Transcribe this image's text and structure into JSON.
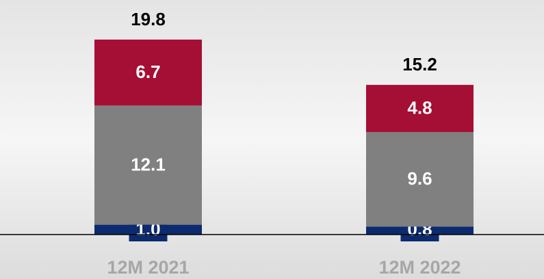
{
  "chart_data": {
    "type": "stacked_bar",
    "categories": [
      "12M 2021",
      "12M 2022"
    ],
    "series": [
      {
        "color": "#0c2b6e",
        "values": [
          1.0,
          0.8
        ],
        "value_labels": [
          "1.0",
          "0.8"
        ]
      },
      {
        "color": "#808080",
        "values": [
          12.1,
          9.6
        ]
      },
      {
        "color": "#a50f35",
        "values": [
          6.7,
          4.8
        ]
      }
    ],
    "totals": [
      19.8,
      15.2
    ]
  }
}
